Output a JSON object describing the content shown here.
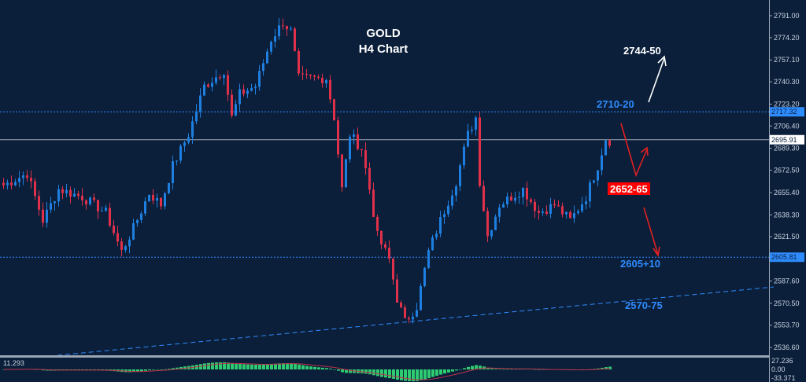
{
  "chart_data": {
    "type": "candlestick",
    "title": "GOLD",
    "subtitle": "H4 Chart",
    "ylim": [
      2530,
      2800
    ],
    "y_ticks": [
      "2791.00",
      "2774.20",
      "2757.10",
      "2740.30",
      "2723.20",
      "2706.40",
      "2689.30",
      "2672.50",
      "2655.40",
      "2638.30",
      "2621.50",
      "2587.60",
      "2570.50",
      "2553.70",
      "2536.60"
    ],
    "close_path": [
      [
        0,
        2661
      ],
      [
        6,
        2670
      ],
      [
        10,
        2634
      ],
      [
        14,
        2658
      ],
      [
        20,
        2652
      ],
      [
        26,
        2640
      ],
      [
        30,
        2610
      ],
      [
        33,
        2628
      ],
      [
        37,
        2655
      ],
      [
        40,
        2646
      ],
      [
        43,
        2676
      ],
      [
        47,
        2700
      ],
      [
        51,
        2737
      ],
      [
        56,
        2749
      ],
      [
        58,
        2713
      ],
      [
        60,
        2731
      ],
      [
        64,
        2737
      ],
      [
        68,
        2773
      ],
      [
        71,
        2786
      ],
      [
        73,
        2779
      ],
      [
        75,
        2743
      ],
      [
        78,
        2743
      ],
      [
        82,
        2743
      ],
      [
        84,
        2713
      ],
      [
        86,
        2658
      ],
      [
        88,
        2700
      ],
      [
        91,
        2689
      ],
      [
        93,
        2658
      ],
      [
        95,
        2622
      ],
      [
        98,
        2604
      ],
      [
        100,
        2574
      ],
      [
        102,
        2556
      ],
      [
        105,
        2568
      ],
      [
        108,
        2610
      ],
      [
        111,
        2634
      ],
      [
        115,
        2664
      ],
      [
        118,
        2700
      ],
      [
        120,
        2713
      ],
      [
        121,
        2664
      ],
      [
        123,
        2622
      ],
      [
        126,
        2646
      ],
      [
        132,
        2658
      ],
      [
        136,
        2640
      ],
      [
        140,
        2646
      ],
      [
        144,
        2634
      ],
      [
        148,
        2652
      ],
      [
        151,
        2676
      ],
      [
        153,
        2697
      ],
      [
        154,
        2695
      ]
    ],
    "levels": [
      {
        "price": 2717.32,
        "label": "2717.32",
        "style": "dotted",
        "color": "#2f8cff"
      },
      {
        "price": 2605.81,
        "label": "2605.81",
        "style": "dotted",
        "color": "#2f8cff"
      },
      {
        "price": 2695.91,
        "label": "2695.91",
        "style": "solid",
        "color": "#9aa6b4"
      }
    ],
    "trendline": {
      "from": [
        12,
        2530
      ],
      "to": [
        196,
        2583
      ]
    },
    "annotations": [
      {
        "text": "2744-50",
        "color": "#ffffff"
      },
      {
        "text": "2710-20",
        "color": "#2f8cff"
      },
      {
        "text": "2652-65",
        "color": "#ffffff",
        "background": "#ff0000"
      },
      {
        "text": "2605+10",
        "color": "#2f8cff"
      },
      {
        "text": "2570-75",
        "color": "#2f8cff"
      }
    ],
    "indicator": {
      "type": "macd",
      "labels": [
        "27.236",
        "0.00",
        "-33.371"
      ],
      "current": "11.293",
      "histogram_color": "#2ecc71",
      "signal_color": "#c0304a"
    },
    "colors": {
      "background": "#0b1f3a",
      "bull": "#1e7fe0",
      "bear": "#e0304a"
    }
  }
}
